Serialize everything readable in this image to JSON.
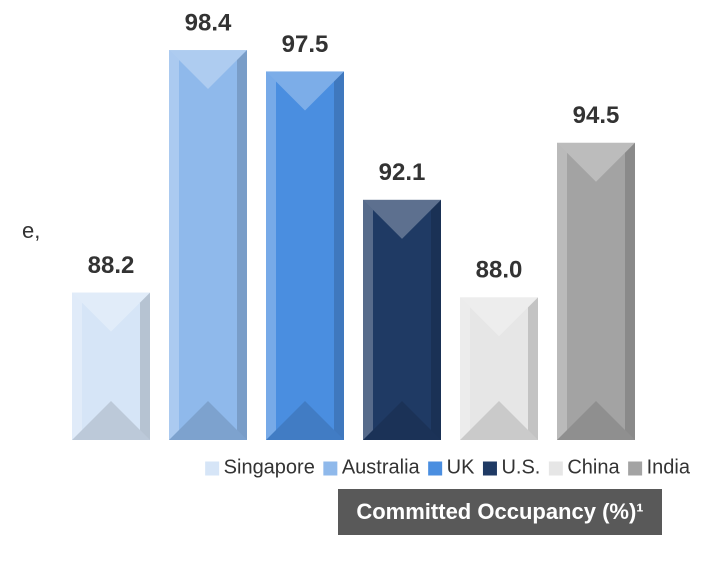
{
  "chart_data": {
    "type": "bar",
    "title": "Committed Occupancy (%)¹",
    "annotation": "e,",
    "categories": [
      "Singapore",
      "Australia",
      "UK",
      "U.S.",
      "China",
      "India"
    ],
    "values": [
      88.2,
      98.4,
      97.5,
      92.1,
      88.0,
      94.5
    ],
    "value_labels": [
      "88.2",
      "98.4",
      "97.5",
      "92.1",
      "88.0",
      "94.5"
    ],
    "colors": [
      "#d6e5f7",
      "#8fb9eb",
      "#4a8ee0",
      "#1f3a64",
      "#e6e6e6",
      "#a3a3a3"
    ],
    "ylim": [
      82,
      100
    ],
    "legend": "bottom"
  }
}
